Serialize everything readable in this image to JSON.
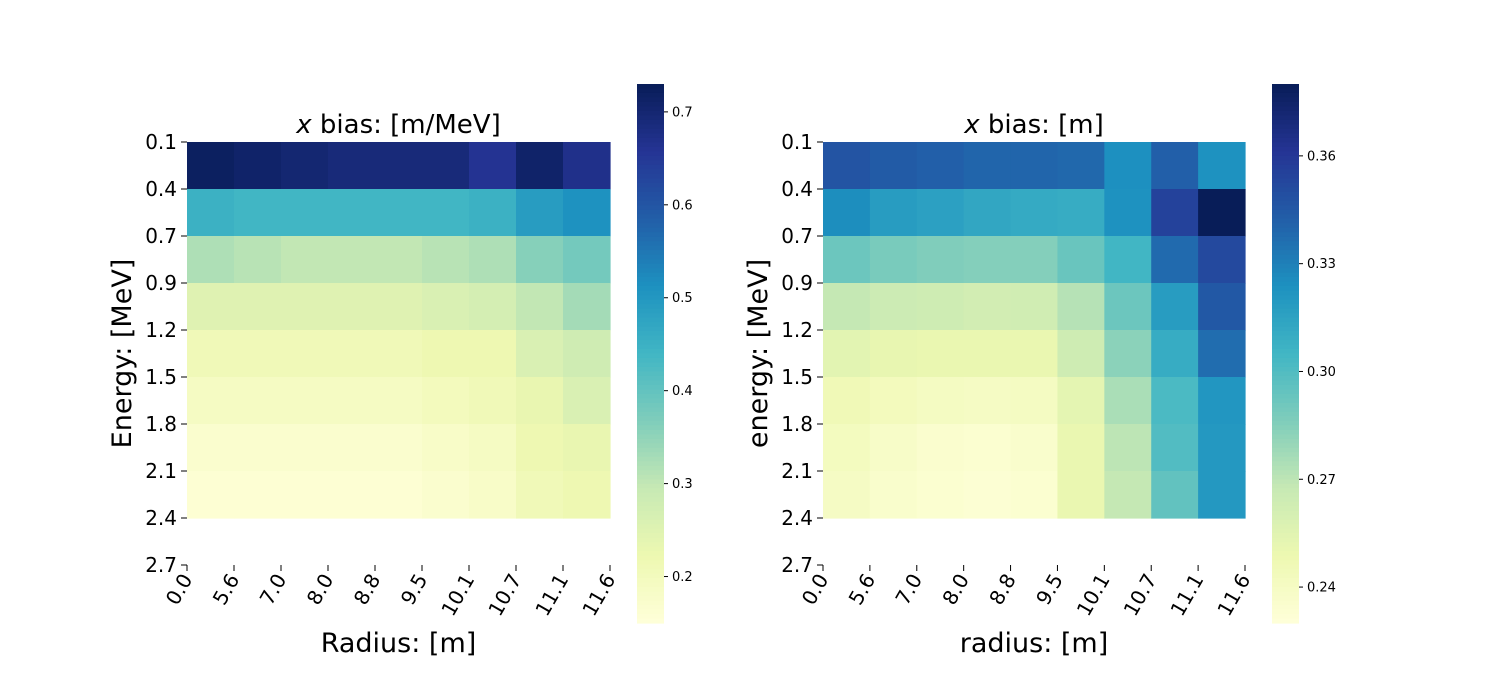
{
  "figure": {
    "background": "#ffffff",
    "colormap": "YlGnBu",
    "colormap_stops": [
      "#ffffd9",
      "#edf8b1",
      "#c7e9b4",
      "#7fcdbb",
      "#41b6c4",
      "#1d91c0",
      "#225ea8",
      "#253494",
      "#081d58"
    ]
  },
  "chart_data": [
    {
      "type": "heatmap",
      "title_var": "x",
      "title": " bias: [m/MeV]",
      "xlabel": "Radius: [m]",
      "ylabel": "Energy: [MeV]",
      "x_tick_labels": [
        "0.0",
        "5.6",
        "7.0",
        "8.0",
        "8.8",
        "9.5",
        "10.1",
        "10.7",
        "11.1",
        "11.6"
      ],
      "y_tick_labels": [
        "0.1",
        "0.4",
        "0.7",
        "0.9",
        "1.2",
        "1.5",
        "1.8",
        "2.1",
        "2.4",
        "2.7"
      ],
      "colorbar": {
        "vmin": 0.15,
        "vmax": 0.73,
        "ticks": [
          0.2,
          0.3,
          0.4,
          0.5,
          0.6,
          0.7
        ],
        "tick_labels": [
          "0.2",
          "0.3",
          "0.4",
          "0.5",
          "0.6",
          "0.7"
        ]
      },
      "values": [
        [
          0.72,
          0.71,
          0.7,
          0.69,
          0.69,
          0.69,
          0.66,
          0.71,
          0.67
        ],
        [
          0.45,
          0.44,
          0.44,
          0.44,
          0.44,
          0.44,
          0.45,
          0.49,
          0.51
        ],
        [
          0.32,
          0.31,
          0.3,
          0.3,
          0.3,
          0.31,
          0.32,
          0.36,
          0.38
        ],
        [
          0.25,
          0.25,
          0.25,
          0.25,
          0.25,
          0.26,
          0.27,
          0.3,
          0.33
        ],
        [
          0.21,
          0.21,
          0.21,
          0.21,
          0.21,
          0.22,
          0.22,
          0.26,
          0.28
        ],
        [
          0.19,
          0.19,
          0.19,
          0.19,
          0.19,
          0.2,
          0.21,
          0.23,
          0.26
        ],
        [
          0.17,
          0.17,
          0.17,
          0.17,
          0.17,
          0.18,
          0.19,
          0.22,
          0.23
        ],
        [
          0.16,
          0.16,
          0.16,
          0.16,
          0.16,
          0.17,
          0.18,
          0.21,
          0.22
        ]
      ]
    },
    {
      "type": "heatmap",
      "title_var": "x",
      "title": " bias: [m]",
      "xlabel": "radius: [m]",
      "ylabel": "energy: [MeV]",
      "x_tick_labels": [
        "0.0",
        "5.6",
        "7.0",
        "8.0",
        "8.8",
        "9.5",
        "10.1",
        "10.7",
        "11.1",
        "11.6"
      ],
      "y_tick_labels": [
        "0.1",
        "0.4",
        "0.7",
        "0.9",
        "1.2",
        "1.5",
        "1.8",
        "2.1",
        "2.4",
        "2.7"
      ],
      "colorbar": {
        "vmin": 0.23,
        "vmax": 0.38,
        "ticks": [
          0.24,
          0.27,
          0.3,
          0.33,
          0.36
        ],
        "tick_labels": [
          "0.24",
          "0.27",
          "0.30",
          "0.33",
          "0.36"
        ]
      },
      "values": [
        [
          0.347,
          0.344,
          0.342,
          0.34,
          0.34,
          0.339,
          0.324,
          0.342,
          0.323
        ],
        [
          0.325,
          0.318,
          0.316,
          0.313,
          0.311,
          0.31,
          0.323,
          0.355,
          0.381
        ],
        [
          0.292,
          0.288,
          0.286,
          0.285,
          0.285,
          0.293,
          0.305,
          0.338,
          0.352
        ],
        [
          0.268,
          0.265,
          0.264,
          0.262,
          0.263,
          0.272,
          0.292,
          0.318,
          0.345
        ],
        [
          0.254,
          0.251,
          0.25,
          0.25,
          0.25,
          0.264,
          0.283,
          0.31,
          0.337
        ],
        [
          0.246,
          0.243,
          0.241,
          0.24,
          0.241,
          0.253,
          0.275,
          0.302,
          0.321
        ],
        [
          0.242,
          0.238,
          0.235,
          0.234,
          0.236,
          0.25,
          0.27,
          0.3,
          0.32
        ],
        [
          0.24,
          0.236,
          0.234,
          0.233,
          0.234,
          0.25,
          0.268,
          0.295,
          0.32
        ]
      ]
    }
  ]
}
